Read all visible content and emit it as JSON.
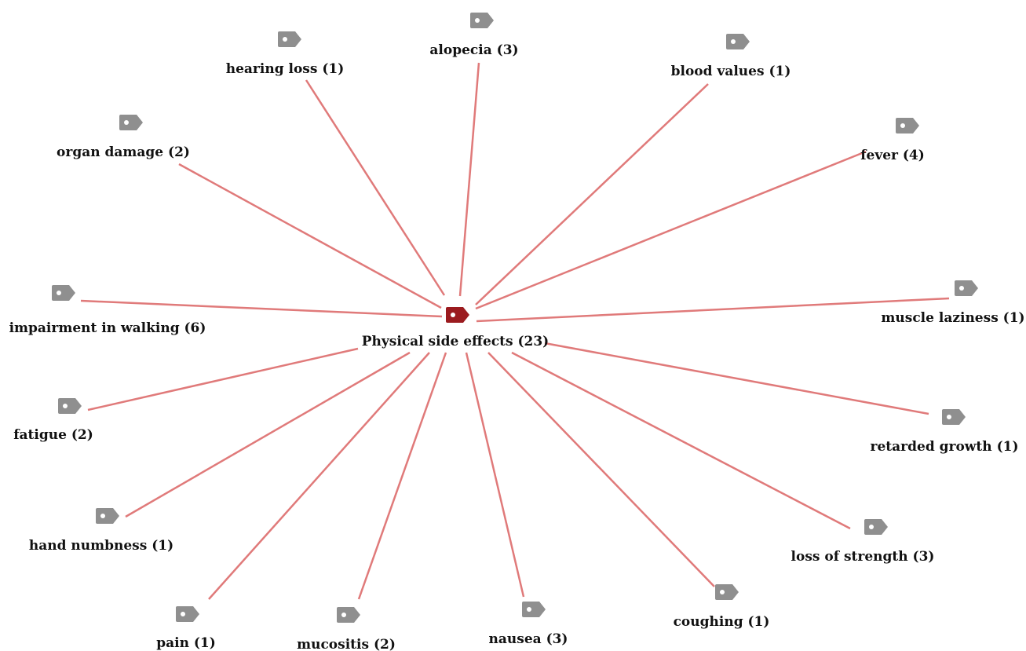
{
  "colors": {
    "edge": "#e07a7a",
    "center_tag": "#9b1b1f",
    "leaf_tag": "#8f8f8f",
    "tag_hole": "#ffffff",
    "label": "#111111"
  },
  "center": {
    "label": "Physical side effects (23)",
    "icon": "tag-icon"
  },
  "nodes": [
    {
      "id": "alopecia",
      "label": "alopecia (3)",
      "icon": "tag-icon"
    },
    {
      "id": "hearing-loss",
      "label": "hearing loss (1)",
      "icon": "tag-icon"
    },
    {
      "id": "blood-values",
      "label": "blood values (1)",
      "icon": "tag-icon"
    },
    {
      "id": "organ-damage",
      "label": "organ damage (2)",
      "icon": "tag-icon"
    },
    {
      "id": "fever",
      "label": "fever (4)",
      "icon": "tag-icon"
    },
    {
      "id": "impairment-in-walking",
      "label": "impairment in walking (6)",
      "icon": "tag-icon"
    },
    {
      "id": "muscle-laziness",
      "label": "muscle laziness (1)",
      "icon": "tag-icon"
    },
    {
      "id": "fatigue",
      "label": "fatigue (2)",
      "icon": "tag-icon"
    },
    {
      "id": "retarded-growth",
      "label": "retarded growth (1)",
      "icon": "tag-icon"
    },
    {
      "id": "hand-numbness",
      "label": "hand numbness (1)",
      "icon": "tag-icon"
    },
    {
      "id": "loss-of-strength",
      "label": "loss of strength (3)",
      "icon": "tag-icon"
    },
    {
      "id": "pain",
      "label": "pain (1)",
      "icon": "tag-icon"
    },
    {
      "id": "mucositis",
      "label": "mucositis (2)",
      "icon": "tag-icon"
    },
    {
      "id": "nausea",
      "label": "nausea (3)",
      "icon": "tag-icon"
    },
    {
      "id": "coughing",
      "label": "coughing (1)",
      "icon": "tag-icon"
    }
  ]
}
